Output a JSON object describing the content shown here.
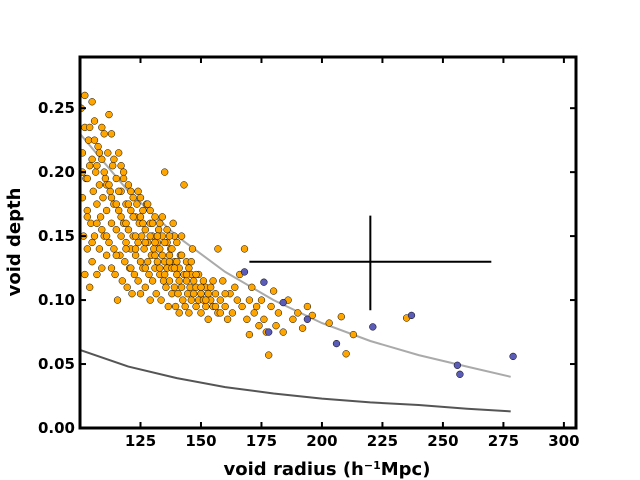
{
  "chart_data": {
    "type": "scatter",
    "title": "",
    "xlabel_main": "void radius (h",
    "xlabel_sup": "−1",
    "xlabel_tail": "Mpc)",
    "ylabel": "void depth",
    "xlim": [
      100,
      305
    ],
    "ylim": [
      0,
      0.29
    ],
    "xticks": [
      {
        "value": 125,
        "label": "125"
      },
      {
        "value": 150,
        "label": "150"
      },
      {
        "value": 175,
        "label": "175"
      },
      {
        "value": 200,
        "label": "200"
      },
      {
        "value": 225,
        "label": "225"
      },
      {
        "value": 250,
        "label": "250"
      },
      {
        "value": 275,
        "label": "275"
      },
      {
        "value": 300,
        "label": "300"
      }
    ],
    "yticks": [
      {
        "value": 0.0,
        "label": "0.00"
      },
      {
        "value": 0.05,
        "label": "0.05"
      },
      {
        "value": 0.1,
        "label": "0.10"
      },
      {
        "value": 0.15,
        "label": "0.15"
      },
      {
        "value": 0.2,
        "label": "0.20"
      },
      {
        "value": 0.25,
        "label": "0.25"
      }
    ],
    "colors": {
      "orange": "#FFA500",
      "blue": "#5B5BB8",
      "light_curve": "#AAAAAA",
      "dark_curve": "#555555",
      "error_bar": "#000000"
    },
    "series": [
      {
        "name": "orange-voids",
        "color": "#FFA500",
        "points": [
          [
            100.5,
            0.25
          ],
          [
            101,
            0.215
          ],
          [
            101,
            0.18
          ],
          [
            101.5,
            0.15
          ],
          [
            102,
            0.235
          ],
          [
            102,
            0.12
          ],
          [
            102.5,
            0.195
          ],
          [
            103,
            0.17
          ],
          [
            103,
            0.14
          ],
          [
            103.5,
            0.225
          ],
          [
            104,
            0.11
          ],
          [
            104,
            0.205
          ],
          [
            104.5,
            0.16
          ],
          [
            105,
            0.255
          ],
          [
            105,
            0.13
          ],
          [
            105.5,
            0.185
          ],
          [
            106,
            0.24
          ],
          [
            106,
            0.15
          ],
          [
            106.5,
            0.2
          ],
          [
            107,
            0.12
          ],
          [
            107,
            0.175
          ],
          [
            107.5,
            0.22
          ],
          [
            108,
            0.14
          ],
          [
            108,
            0.19
          ],
          [
            108.5,
            0.165
          ],
          [
            109,
            0.21
          ],
          [
            109,
            0.125
          ],
          [
            109.5,
            0.18
          ],
          [
            110,
            0.23
          ],
          [
            110,
            0.15
          ],
          [
            110.5,
            0.195
          ],
          [
            111,
            0.135
          ],
          [
            111,
            0.17
          ],
          [
            111.5,
            0.215
          ],
          [
            112,
            0.145
          ],
          [
            112,
            0.245
          ],
          [
            112.5,
            0.185
          ],
          [
            113,
            0.125
          ],
          [
            113,
            0.16
          ],
          [
            113.5,
            0.205
          ],
          [
            114,
            0.14
          ],
          [
            114,
            0.175
          ],
          [
            114.5,
            0.12
          ],
          [
            115,
            0.195
          ],
          [
            115,
            0.155
          ],
          [
            115.5,
            0.1
          ],
          [
            116,
            0.215
          ],
          [
            116,
            0.17
          ],
          [
            116.5,
            0.135
          ],
          [
            117,
            0.185
          ],
          [
            117,
            0.15
          ],
          [
            117.5,
            0.115
          ],
          [
            118,
            0.2
          ],
          [
            118,
            0.16
          ],
          [
            118.5,
            0.13
          ],
          [
            119,
            0.175
          ],
          [
            119,
            0.145
          ],
          [
            119.5,
            0.11
          ],
          [
            120,
            0.19
          ],
          [
            120,
            0.155
          ],
          [
            120.5,
            0.125
          ],
          [
            121,
            0.17
          ],
          [
            121,
            0.14
          ],
          [
            121.5,
            0.105
          ],
          [
            122,
            0.18
          ],
          [
            122,
            0.15
          ],
          [
            122.5,
            0.12
          ],
          [
            123,
            0.165
          ],
          [
            123,
            0.135
          ],
          [
            123.5,
            0.175
          ],
          [
            124,
            0.145
          ],
          [
            124,
            0.115
          ],
          [
            124.5,
            0.16
          ],
          [
            125,
            0.13
          ],
          [
            125,
            0.105
          ],
          [
            125.5,
            0.15
          ],
          [
            126,
            0.17
          ],
          [
            126,
            0.125
          ],
          [
            126.5,
            0.14
          ],
          [
            127,
            0.11
          ],
          [
            127,
            0.155
          ],
          [
            127.5,
            0.175
          ],
          [
            128,
            0.13
          ],
          [
            128,
            0.145
          ],
          [
            128.5,
            0.12
          ],
          [
            129,
            0.16
          ],
          [
            129,
            0.1
          ],
          [
            129.5,
            0.135
          ],
          [
            130,
            0.15
          ],
          [
            130,
            0.115
          ],
          [
            130.5,
            0.14
          ],
          [
            131,
            0.165
          ],
          [
            131,
            0.125
          ],
          [
            131.5,
            0.105
          ],
          [
            132,
            0.145
          ],
          [
            132,
            0.13
          ],
          [
            132.5,
            0.155
          ],
          [
            133,
            0.12
          ],
          [
            133,
            0.14
          ],
          [
            133.5,
            0.1
          ],
          [
            134,
            0.135
          ],
          [
            134,
            0.15
          ],
          [
            134.5,
            0.115
          ],
          [
            135,
            0.2
          ],
          [
            135,
            0.13
          ],
          [
            135.5,
            0.11
          ],
          [
            136,
            0.145
          ],
          [
            136,
            0.125
          ],
          [
            136.5,
            0.095
          ],
          [
            137,
            0.135
          ],
          [
            137,
            0.115
          ],
          [
            137.5,
            0.14
          ],
          [
            138,
            0.105
          ],
          [
            138,
            0.125
          ],
          [
            138.5,
            0.16
          ],
          [
            139,
            0.11
          ],
          [
            139,
            0.13
          ],
          [
            139.5,
            0.095
          ],
          [
            140,
            0.12
          ],
          [
            140,
            0.145
          ],
          [
            140.5,
            0.105
          ],
          [
            141,
            0.125
          ],
          [
            141,
            0.09
          ],
          [
            141.5,
            0.135
          ],
          [
            142,
            0.11
          ],
          [
            142,
            0.15
          ],
          [
            142.5,
            0.1
          ],
          [
            143,
            0.12
          ],
          [
            143,
            0.19
          ],
          [
            143.5,
            0.095
          ],
          [
            144,
            0.115
          ],
          [
            144,
            0.13
          ],
          [
            144.5,
            0.105
          ],
          [
            145,
            0.125
          ],
          [
            145,
            0.09
          ],
          [
            145.5,
            0.11
          ],
          [
            146,
            0.1
          ],
          [
            146,
            0.12
          ],
          [
            146.5,
            0.14
          ],
          [
            147,
            0.105
          ],
          [
            147,
            0.115
          ],
          [
            148,
            0.095
          ],
          [
            148,
            0.11
          ],
          [
            149,
            0.1
          ],
          [
            149,
            0.12
          ],
          [
            150,
            0.105
          ],
          [
            150,
            0.09
          ],
          [
            151,
            0.115
          ],
          [
            151,
            0.1
          ],
          [
            152,
            0.095
          ],
          [
            152,
            0.11
          ],
          [
            153,
            0.105
          ],
          [
            153,
            0.085
          ],
          [
            154,
            0.1
          ],
          [
            155,
            0.115
          ],
          [
            155,
            0.095
          ],
          [
            156,
            0.105
          ],
          [
            157,
            0.14
          ],
          [
            157,
            0.09
          ],
          [
            158,
            0.1
          ],
          [
            159,
            0.115
          ],
          [
            160,
            0.095
          ],
          [
            161,
            0.085
          ],
          [
            162,
            0.105
          ],
          [
            163,
            0.09
          ],
          [
            164,
            0.11
          ],
          [
            165,
            0.1
          ],
          [
            166,
            0.12
          ],
          [
            167,
            0.095
          ],
          [
            168,
            0.14
          ],
          [
            169,
            0.085
          ],
          [
            170,
            0.1
          ],
          [
            170,
            0.073
          ],
          [
            171,
            0.11
          ],
          [
            172,
            0.09
          ],
          [
            173,
            0.095
          ],
          [
            174,
            0.08
          ],
          [
            175,
            0.1
          ],
          [
            176,
            0.085
          ],
          [
            177,
            0.075
          ],
          [
            178,
            0.057
          ],
          [
            179,
            0.095
          ],
          [
            180,
            0.107
          ],
          [
            181,
            0.08
          ],
          [
            182,
            0.09
          ],
          [
            184,
            0.075
          ],
          [
            186,
            0.1
          ],
          [
            188,
            0.085
          ],
          [
            190,
            0.09
          ],
          [
            192,
            0.078
          ],
          [
            194,
            0.095
          ],
          [
            196,
            0.088
          ],
          [
            203,
            0.082
          ],
          [
            208,
            0.087
          ],
          [
            210,
            0.058
          ],
          [
            213,
            0.073
          ],
          [
            235,
            0.086
          ],
          [
            103,
            0.165
          ],
          [
            105,
            0.145
          ],
          [
            107,
            0.205
          ],
          [
            109,
            0.155
          ],
          [
            111,
            0.19
          ],
          [
            113,
            0.23
          ],
          [
            115,
            0.175
          ],
          [
            117,
            0.205
          ],
          [
            119,
            0.16
          ],
          [
            121,
            0.185
          ],
          [
            123,
            0.15
          ],
          [
            125,
            0.18
          ],
          [
            127,
            0.145
          ],
          [
            129,
            0.17
          ],
          [
            131,
            0.135
          ],
          [
            133,
            0.16
          ],
          [
            135,
            0.145
          ],
          [
            137,
            0.13
          ],
          [
            139,
            0.15
          ],
          [
            141,
            0.115
          ],
          [
            102,
            0.26
          ],
          [
            104,
            0.235
          ],
          [
            106,
            0.225
          ],
          [
            108,
            0.215
          ],
          [
            110,
            0.2
          ],
          [
            112,
            0.19
          ],
          [
            114,
            0.21
          ],
          [
            116,
            0.185
          ],
          [
            118,
            0.195
          ],
          [
            120,
            0.175
          ],
          [
            122,
            0.165
          ],
          [
            124,
            0.185
          ],
          [
            126,
            0.16
          ],
          [
            128,
            0.175
          ],
          [
            130,
            0.16
          ],
          [
            132,
            0.15
          ],
          [
            134,
            0.165
          ],
          [
            136,
            0.155
          ],
          [
            138,
            0.14
          ],
          [
            140,
            0.13
          ],
          [
            101,
            0.2
          ],
          [
            103,
            0.195
          ],
          [
            105,
            0.21
          ],
          [
            107,
            0.16
          ],
          [
            109,
            0.235
          ],
          [
            111,
            0.15
          ],
          [
            113,
            0.18
          ],
          [
            115,
            0.135
          ],
          [
            117,
            0.165
          ],
          [
            119,
            0.14
          ],
          [
            121,
            0.125
          ],
          [
            123,
            0.14
          ],
          [
            125,
            0.165
          ],
          [
            127,
            0.125
          ],
          [
            129,
            0.15
          ],
          [
            131,
            0.145
          ],
          [
            133,
            0.125
          ],
          [
            135,
            0.12
          ],
          [
            137,
            0.15
          ],
          [
            139,
            0.125
          ],
          [
            142,
            0.135
          ],
          [
            144,
            0.12
          ],
          [
            146,
            0.13
          ],
          [
            148,
            0.12
          ],
          [
            150,
            0.11
          ],
          [
            152,
            0.1
          ],
          [
            154,
            0.11
          ],
          [
            156,
            0.095
          ],
          [
            158,
            0.09
          ],
          [
            160,
            0.105
          ]
        ]
      },
      {
        "name": "blue-voids",
        "color": "#5B5BB8",
        "points": [
          [
            168,
            0.122
          ],
          [
            176,
            0.114
          ],
          [
            178,
            0.075
          ],
          [
            184,
            0.098
          ],
          [
            194,
            0.085
          ],
          [
            206,
            0.066
          ],
          [
            221,
            0.079
          ],
          [
            237,
            0.088
          ],
          [
            256,
            0.049
          ],
          [
            257,
            0.042
          ],
          [
            279,
            0.056
          ]
        ]
      }
    ],
    "curves": [
      {
        "name": "light-grey-curve",
        "color": "#AAAAAA",
        "points": [
          [
            100,
            0.23
          ],
          [
            120,
            0.185
          ],
          [
            140,
            0.15
          ],
          [
            160,
            0.122
          ],
          [
            180,
            0.1
          ],
          [
            200,
            0.082
          ],
          [
            220,
            0.068
          ],
          [
            240,
            0.057
          ],
          [
            260,
            0.048
          ],
          [
            278,
            0.04
          ]
        ]
      },
      {
        "name": "dark-grey-curve",
        "color": "#555555",
        "points": [
          [
            100,
            0.061
          ],
          [
            120,
            0.048
          ],
          [
            140,
            0.039
          ],
          [
            160,
            0.032
          ],
          [
            180,
            0.027
          ],
          [
            200,
            0.023
          ],
          [
            220,
            0.02
          ],
          [
            240,
            0.018
          ],
          [
            260,
            0.015
          ],
          [
            278,
            0.013
          ]
        ]
      }
    ],
    "error_bar": {
      "center": [
        220,
        0.13
      ],
      "x_range": [
        170,
        270
      ],
      "y_range": [
        0.092,
        0.166
      ]
    }
  }
}
